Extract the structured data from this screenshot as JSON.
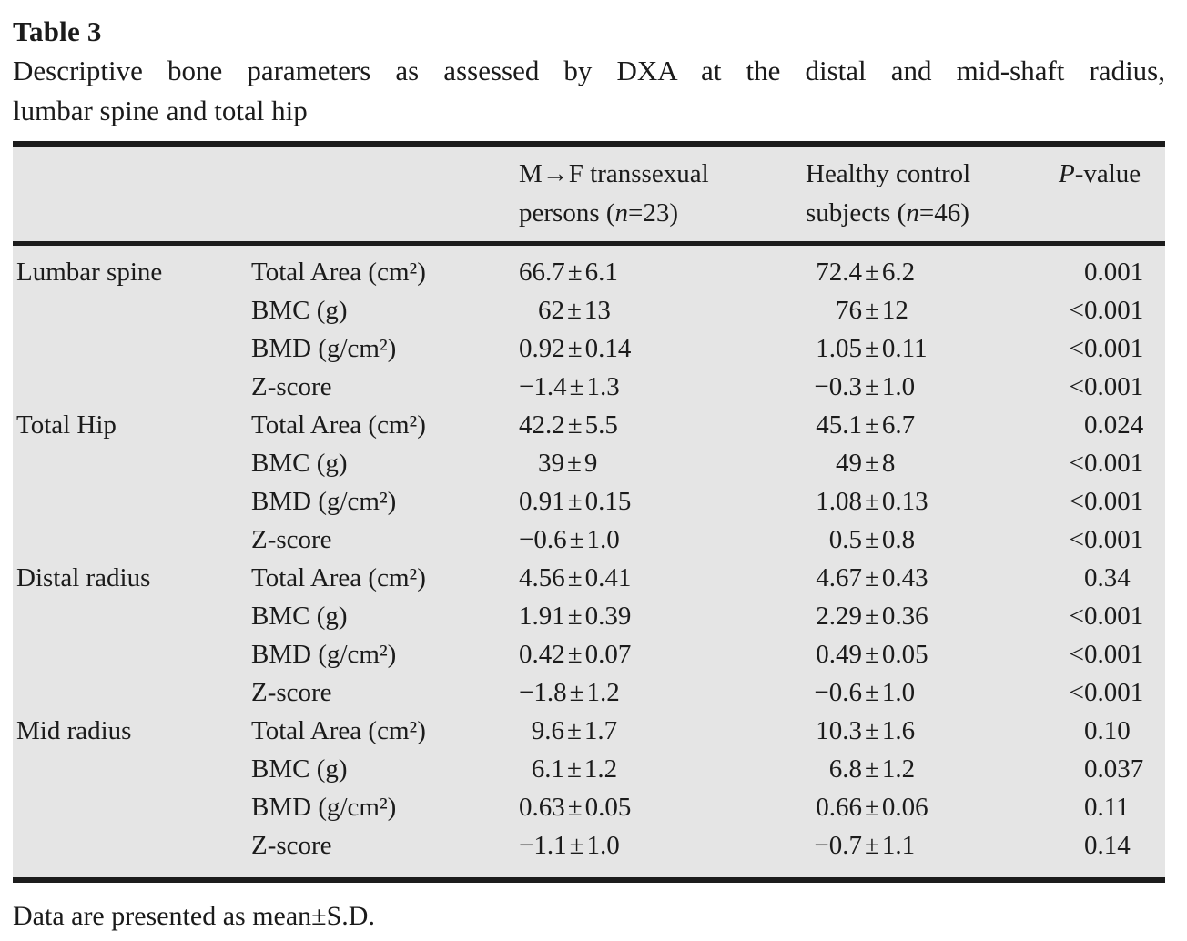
{
  "title": "Table 3",
  "caption": {
    "line1": "Descriptive bone parameters as assessed by DXA at the distal and mid-shaft radius,",
    "line2": "lumbar spine and total hip"
  },
  "symbols": {
    "pm": "±"
  },
  "table": {
    "columns": {
      "group1": {
        "line1": "M→F transsexual",
        "line2_pre": "persons (",
        "n_italic": "n",
        "line2_post": "=23)"
      },
      "group2": {
        "line1": "Healthy control",
        "line2_pre": "subjects (",
        "n_italic": "n",
        "line2_post": "=46)"
      },
      "pcol": {
        "italic": "P",
        "rest": "-value"
      }
    },
    "sections": [
      {
        "region": "Lumbar spine",
        "rows": [
          {
            "param": "Total Area (cm²)",
            "v1a": "66.7",
            "v1b": "6.1",
            "v2a": "72.4",
            "v2b": "6.2",
            "p_prefix": "",
            "p": "0.001"
          },
          {
            "param": "BMC (g)",
            "v1a": "62",
            "v1b": "13",
            "v2a": "76",
            "v2b": "12",
            "p_prefix": "<",
            "p": "0.001"
          },
          {
            "param": "BMD (g/cm²)",
            "v1a": "0.92",
            "v1b": "0.14",
            "v2a": "1.05",
            "v2b": "0.11",
            "p_prefix": "<",
            "p": "0.001"
          },
          {
            "param": "Z-score",
            "v1a": "−1.4",
            "v1b": "1.3",
            "v2a": "−0.3",
            "v2b": "1.0",
            "p_prefix": "<",
            "p": "0.001"
          }
        ]
      },
      {
        "region": "Total Hip",
        "rows": [
          {
            "param": "Total Area (cm²)",
            "v1a": "42.2",
            "v1b": "5.5",
            "v2a": "45.1",
            "v2b": "6.7",
            "p_prefix": "",
            "p": "0.024"
          },
          {
            "param": "BMC (g)",
            "v1a": "39",
            "v1b": "9",
            "v2a": "49",
            "v2b": "8",
            "p_prefix": "<",
            "p": "0.001"
          },
          {
            "param": "BMD (g/cm²)",
            "v1a": "0.91",
            "v1b": "0.15",
            "v2a": "1.08",
            "v2b": "0.13",
            "p_prefix": "<",
            "p": "0.001"
          },
          {
            "param": "Z-score",
            "v1a": "−0.6",
            "v1b": "1.0",
            "v2a": "0.5",
            "v2b": "0.8",
            "p_prefix": "<",
            "p": "0.001"
          }
        ]
      },
      {
        "region": "Distal radius",
        "rows": [
          {
            "param": "Total Area (cm²)",
            "v1a": "4.56",
            "v1b": "0.41",
            "v2a": "4.67",
            "v2b": "0.43",
            "p_prefix": "",
            "p": "0.34"
          },
          {
            "param": "BMC (g)",
            "v1a": "1.91",
            "v1b": "0.39",
            "v2a": "2.29",
            "v2b": "0.36",
            "p_prefix": "<",
            "p": "0.001"
          },
          {
            "param": "BMD (g/cm²)",
            "v1a": "0.42",
            "v1b": "0.07",
            "v2a": "0.49",
            "v2b": "0.05",
            "p_prefix": "<",
            "p": "0.001"
          },
          {
            "param": "Z-score",
            "v1a": "−1.8",
            "v1b": "1.2",
            "v2a": "−0.6",
            "v2b": "1.0",
            "p_prefix": "<",
            "p": "0.001"
          }
        ]
      },
      {
        "region": "Mid radius",
        "rows": [
          {
            "param": "Total Area (cm²)",
            "v1a": "9.6",
            "v1b": "1.7",
            "v2a": "10.3",
            "v2b": "1.6",
            "p_prefix": "",
            "p": "0.10"
          },
          {
            "param": "BMC (g)",
            "v1a": "6.1",
            "v1b": "1.2",
            "v2a": "6.8",
            "v2b": "1.2",
            "p_prefix": "",
            "p": "0.037"
          },
          {
            "param": "BMD (g/cm²)",
            "v1a": "0.63",
            "v1b": "0.05",
            "v2a": "0.66",
            "v2b": "0.06",
            "p_prefix": "",
            "p": "0.11"
          },
          {
            "param": "Z-score",
            "v1a": "−1.1",
            "v1b": "1.0",
            "v2a": "−0.7",
            "v2b": "1.1",
            "p_prefix": "",
            "p": "0.14"
          }
        ]
      }
    ]
  },
  "footnote": "Data are presented as mean±S.D.",
  "colors": {
    "table_bg": "#e5e5e5",
    "rule": "#1c1c1c",
    "text": "#1b1b1b"
  }
}
